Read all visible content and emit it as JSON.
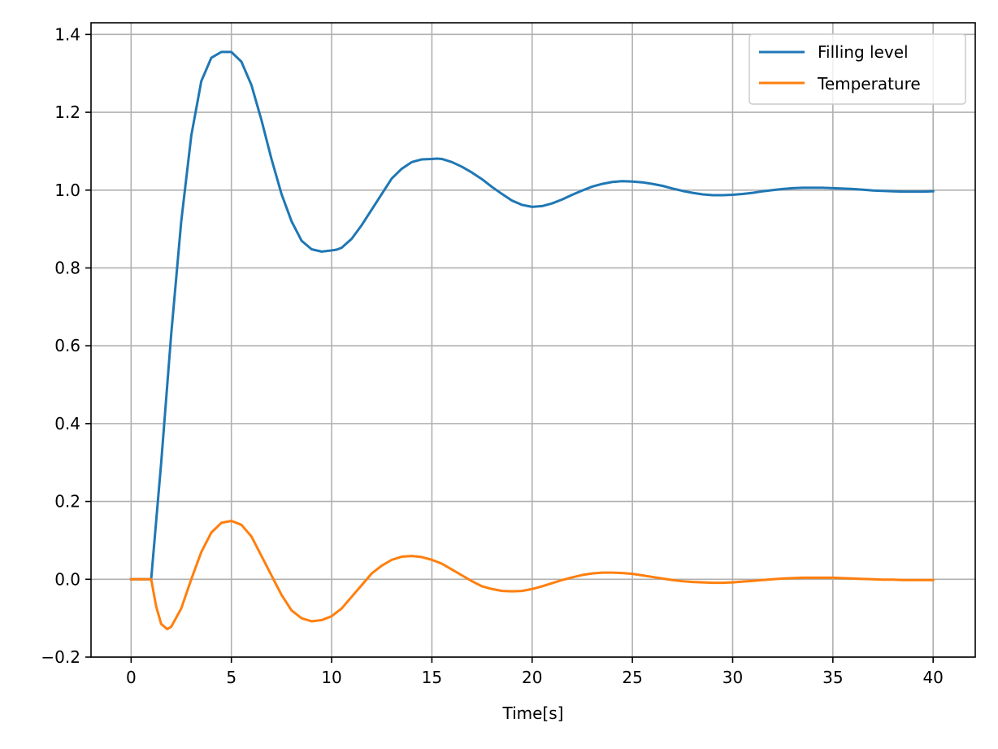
{
  "chart_data": {
    "type": "line",
    "title": "",
    "xlabel": "Time[s]",
    "ylabel": "",
    "xlim": [
      -2,
      42.1
    ],
    "ylim": [
      -0.2,
      1.43
    ],
    "xticks": [
      0,
      5,
      10,
      15,
      20,
      25,
      30,
      35,
      40
    ],
    "yticks": [
      -0.2,
      0.0,
      0.2,
      0.4,
      0.6,
      0.8,
      1.0,
      1.2,
      1.4
    ],
    "ytick_labels": [
      "−0.2",
      "0.0",
      "0.2",
      "0.4",
      "0.6",
      "0.8",
      "1.0",
      "1.2",
      "1.4"
    ],
    "grid": true,
    "legend_position": "top-right",
    "series": [
      {
        "name": "Filling level",
        "color": "#1f77b4",
        "x": [
          0,
          0.5,
          1,
          1.5,
          2,
          2.5,
          3,
          3.5,
          4,
          4.5,
          5,
          5.5,
          6,
          6.5,
          7,
          7.5,
          8,
          8.5,
          9,
          9.5,
          10,
          10.25,
          10.5,
          11,
          11.5,
          12,
          12.5,
          13,
          13.5,
          14,
          14.5,
          15,
          15.25,
          15.5,
          16,
          16.5,
          17,
          17.5,
          18,
          18.5,
          19,
          19.5,
          20,
          20.5,
          21,
          21.5,
          22,
          22.5,
          23,
          23.5,
          24,
          24.5,
          25,
          25.5,
          26,
          26.5,
          27,
          27.5,
          28,
          28.5,
          29,
          29.5,
          30,
          30.5,
          31,
          31.5,
          32,
          32.5,
          33,
          33.5,
          34,
          34.5,
          35,
          35.5,
          36,
          36.5,
          37,
          37.5,
          38,
          38.5,
          39,
          39.5,
          40
        ],
        "values": [
          0,
          0,
          0,
          0.3,
          0.63,
          0.92,
          1.14,
          1.28,
          1.34,
          1.355,
          1.355,
          1.33,
          1.27,
          1.18,
          1.08,
          0.99,
          0.92,
          0.87,
          0.848,
          0.842,
          0.845,
          0.847,
          0.852,
          0.875,
          0.91,
          0.95,
          0.99,
          1.03,
          1.055,
          1.072,
          1.079,
          1.08,
          1.081,
          1.08,
          1.072,
          1.06,
          1.045,
          1.028,
          1.008,
          0.99,
          0.973,
          0.962,
          0.957,
          0.959,
          0.966,
          0.976,
          0.988,
          0.999,
          1.009,
          1.016,
          1.021,
          1.023,
          1.022,
          1.02,
          1.016,
          1.011,
          1.004,
          0.998,
          0.993,
          0.989,
          0.987,
          0.987,
          0.988,
          0.99,
          0.993,
          0.997,
          1.0,
          1.003,
          1.005,
          1.006,
          1.006,
          1.006,
          1.005,
          1.004,
          1.003,
          1.001,
          0.999,
          0.998,
          0.997,
          0.996,
          0.996,
          0.996,
          0.997
        ]
      },
      {
        "name": "Temperature",
        "color": "#ff7f0e",
        "x": [
          0,
          0.5,
          1,
          1.25,
          1.5,
          1.8,
          2,
          2.5,
          3,
          3.5,
          4,
          4.5,
          5,
          5.5,
          6,
          6.5,
          7,
          7.5,
          8,
          8.5,
          9,
          9.5,
          10,
          10.5,
          11,
          11.5,
          12,
          12.5,
          13,
          13.5,
          14,
          14.5,
          15,
          15.5,
          16,
          16.5,
          17,
          17.5,
          18,
          18.5,
          19,
          19.5,
          20,
          20.5,
          21,
          21.5,
          22,
          22.5,
          23,
          23.5,
          24,
          24.5,
          25,
          25.5,
          26,
          26.5,
          27,
          27.5,
          28,
          28.5,
          29,
          29.5,
          30,
          30.5,
          31,
          31.5,
          32,
          32.5,
          33,
          33.5,
          34,
          34.5,
          35,
          35.5,
          36,
          36.5,
          37,
          37.5,
          38,
          38.5,
          39,
          39.5,
          40
        ],
        "values": [
          0,
          0,
          0,
          -0.07,
          -0.115,
          -0.128,
          -0.122,
          -0.075,
          0.0,
          0.07,
          0.12,
          0.145,
          0.15,
          0.14,
          0.11,
          0.06,
          0.01,
          -0.04,
          -0.08,
          -0.1,
          -0.108,
          -0.105,
          -0.095,
          -0.075,
          -0.045,
          -0.015,
          0.015,
          0.035,
          0.05,
          0.058,
          0.06,
          0.057,
          0.05,
          0.04,
          0.025,
          0.01,
          -0.005,
          -0.018,
          -0.025,
          -0.03,
          -0.031,
          -0.03,
          -0.025,
          -0.018,
          -0.01,
          -0.002,
          0.005,
          0.011,
          0.015,
          0.017,
          0.017,
          0.016,
          0.014,
          0.01,
          0.006,
          0.002,
          -0.002,
          -0.005,
          -0.007,
          -0.008,
          -0.009,
          -0.009,
          -0.008,
          -0.006,
          -0.004,
          -0.002,
          0.0,
          0.002,
          0.003,
          0.004,
          0.004,
          0.004,
          0.004,
          0.003,
          0.002,
          0.001,
          0.0,
          -0.001,
          -0.001,
          -0.002,
          -0.002,
          -0.002,
          -0.002
        ]
      }
    ]
  }
}
